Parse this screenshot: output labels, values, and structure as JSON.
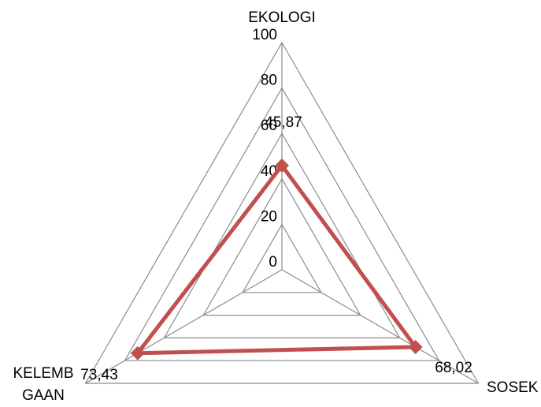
{
  "chart_data": {
    "type": "radar",
    "axes": [
      "EKOLOGI",
      "SOSEK",
      "KELEMBAGAAN"
    ],
    "axis_label_lines": [
      [
        "EKOLOGI"
      ],
      [
        "SOSEK"
      ],
      [
        "KELEMB",
        "GAAN"
      ]
    ],
    "ticks": [
      "0",
      "20",
      "40",
      "60",
      "80",
      "100"
    ],
    "rlim": [
      0,
      100
    ],
    "series": [
      {
        "values": [
          45.87,
          68.02,
          73.43
        ],
        "labels": [
          "45,87",
          "68,02",
          "73,43"
        ],
        "color": "#c0504d"
      }
    ],
    "grid": true,
    "legend": false
  }
}
